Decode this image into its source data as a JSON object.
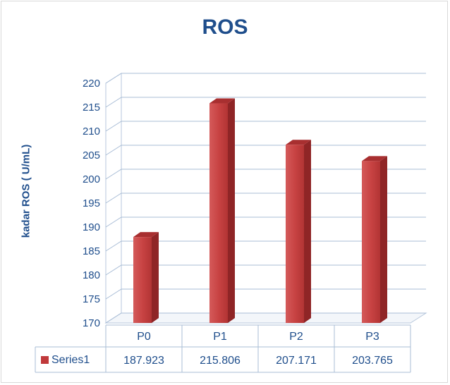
{
  "chart_data": {
    "type": "bar",
    "title": "ROS",
    "xlabel": "",
    "ylabel": "kadar ROS ( U/mL)",
    "categories": [
      "P0",
      "P1",
      "P2",
      "P3"
    ],
    "series": [
      {
        "name": "Series1",
        "values": [
          187.923,
          215.806,
          207.171,
          203.765
        ],
        "value_labels": [
          "187.923",
          "215.806",
          "207.171",
          "203.765"
        ]
      }
    ],
    "ylim": [
      170,
      220
    ],
    "yticks": [
      170,
      175,
      180,
      185,
      190,
      195,
      200,
      205,
      210,
      215,
      220
    ],
    "grid": true,
    "legend": "data-table",
    "three_d": true,
    "bar_color": "#c0393b"
  }
}
